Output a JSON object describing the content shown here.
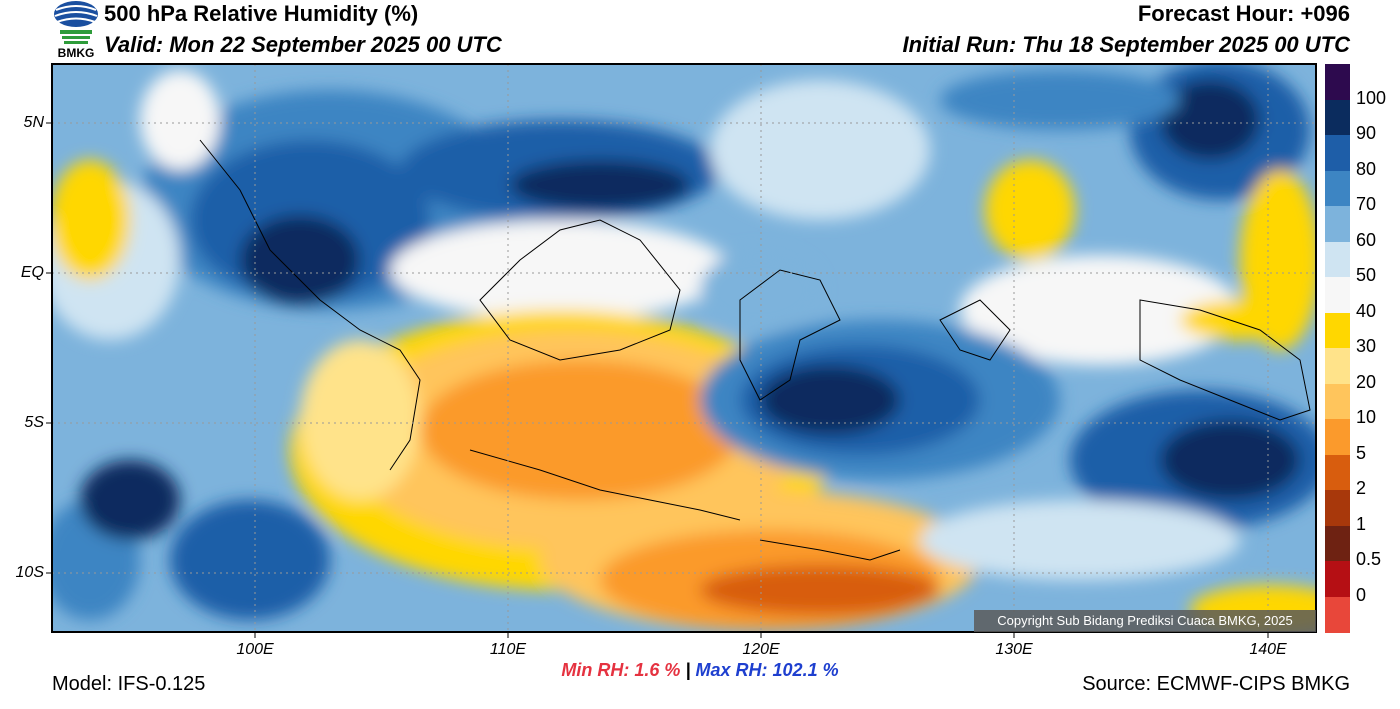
{
  "header": {
    "title": "500 hPa Relative Humidity (%)",
    "valid": "Valid: Mon 22 September 2025 00 UTC",
    "forecast_hour": "Forecast Hour: +096",
    "initial_run": "Initial Run: Thu 18 September 2025 00 UTC",
    "logo_text": "BMKG"
  },
  "axes": {
    "lat_labels": [
      "5N",
      "EQ",
      "5S",
      "10S"
    ],
    "lon_labels": [
      "100E",
      "110E",
      "120E",
      "130E",
      "140E"
    ]
  },
  "colorbar": {
    "labels": [
      "100",
      "90",
      "80",
      "70",
      "60",
      "50",
      "40",
      "30",
      "20",
      "10",
      "5",
      "2",
      "1",
      "0.5",
      "0"
    ],
    "colors": [
      "#2d0a4e",
      "#0b2c5e",
      "#1e5ea8",
      "#3d85c3",
      "#7db3dc",
      "#cfe4f2",
      "#f7f7f7",
      "#ffd700",
      "#ffe38a",
      "#ffc55c",
      "#fb9a2c",
      "#d85d0e",
      "#a8380b",
      "#6e2212",
      "#b50f14",
      "#e8473a"
    ]
  },
  "footer": {
    "copyright": "Copyright Sub Bidang Prediksi Cuaca BMKG, 2025",
    "min_rh_label": "Min RH:",
    "min_rh_value": "1.6 %",
    "separator": "|",
    "max_rh_label": "Max RH:",
    "max_rh_value": "102.1 %",
    "model": "Model: IFS-0.125",
    "source": "Source: ECMWF-CIPS BMKG"
  }
}
